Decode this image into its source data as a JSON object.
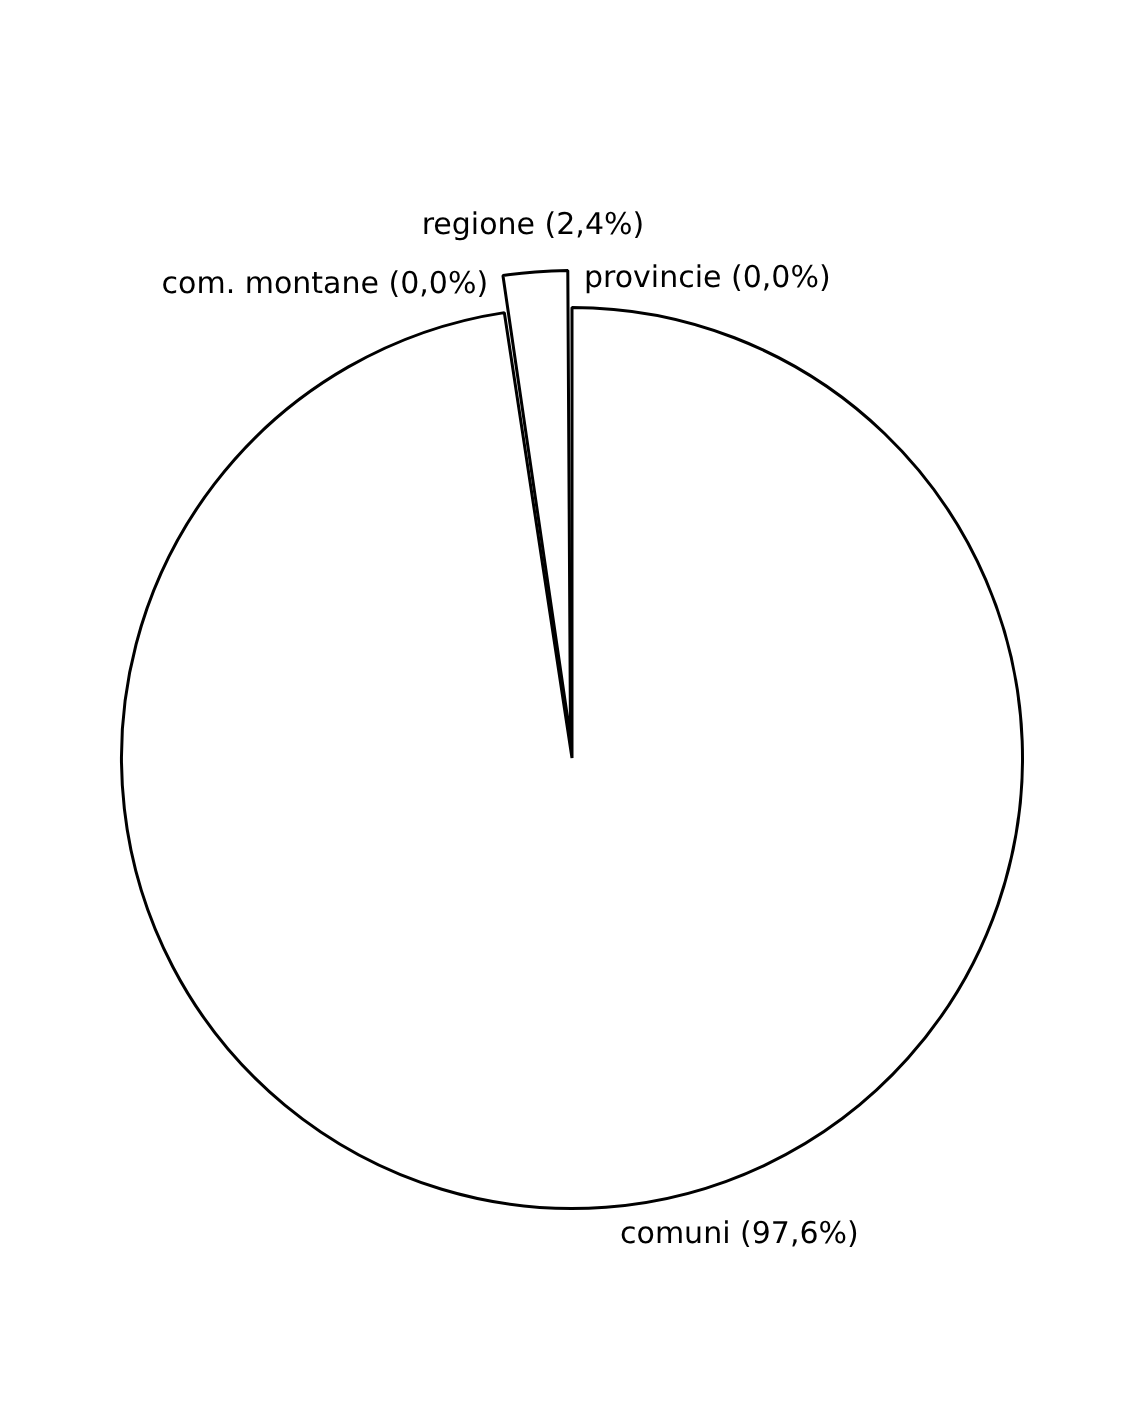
{
  "chart_data": {
    "type": "pie",
    "categories": [
      "provincie (0,0%)",
      "comuni (97,6%)",
      "com. montane (0,0%)",
      "regione (2,4%)"
    ],
    "values": [
      0,
      97.6,
      0,
      2.4
    ],
    "colors": [
      "#ffffff",
      "#ffffff",
      "#ffffff",
      "#ffffff"
    ],
    "legend": false
  }
}
